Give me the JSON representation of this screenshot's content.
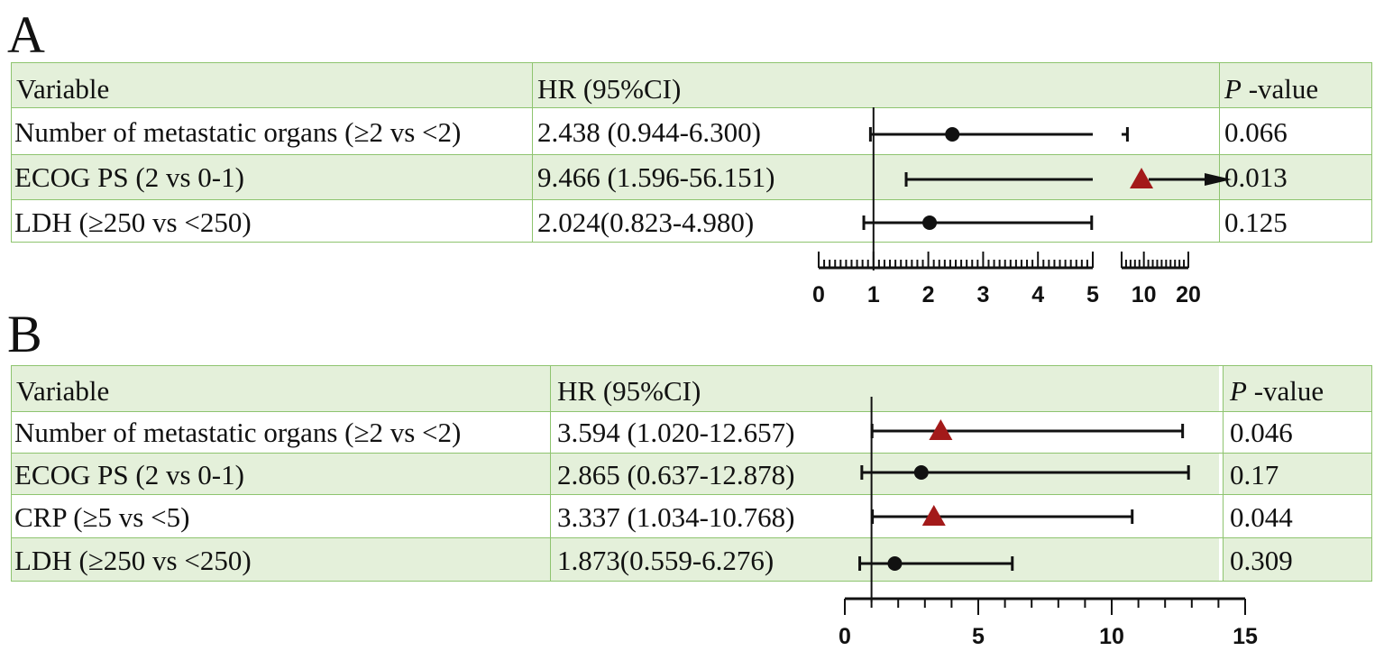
{
  "panels": [
    {
      "letter": "A",
      "headers": {
        "variable": "Variable",
        "hr": "HR (95%CI)",
        "p_italic": "P",
        "p_rest": " -value"
      },
      "rows": [
        {
          "variable": "Number of metastatic organs (≥2 vs <2)",
          "hr": "2.438 (0.944-6.300)",
          "p": "0.066"
        },
        {
          "variable": "ECOG PS (2 vs 0-1)",
          "hr": "9.466 (1.596-56.151)",
          "p": "0.013"
        },
        {
          "variable": "LDH (≥250 vs <250)",
          "hr": "2.024(0.823-4.980)",
          "p": "0.125"
        }
      ],
      "axis_ticks": [
        "0",
        "1",
        "2",
        "3",
        "4",
        "5",
        "10",
        "20"
      ]
    },
    {
      "letter": "B",
      "headers": {
        "variable": "Variable",
        "hr": "HR (95%CI)",
        "p_italic": "P",
        "p_rest": " -value"
      },
      "rows": [
        {
          "variable": "Number of metastatic organs (≥2 vs <2)",
          "hr": "3.594 (1.020-12.657)",
          "p": "0.046"
        },
        {
          "variable": "ECOG PS (2 vs 0-1)",
          "hr": "2.865 (0.637-12.878)",
          "p": "0.17"
        },
        {
          "variable": "CRP (≥5 vs <5)",
          "hr": "3.337 (1.034-10.768)",
          "p": "0.044"
        },
        {
          "variable": "LDH (≥250 vs <250)",
          "hr": "1.873(0.559-6.276)",
          "p": "0.309"
        }
      ],
      "axis_ticks": [
        "0",
        "5",
        "10",
        "15"
      ]
    }
  ],
  "chart_data": [
    {
      "type": "forest",
      "x_scale": "broken axis: linear 0-5, then 5-20",
      "reference_line": 1,
      "xlim": [
        0,
        20
      ],
      "series": [
        {
          "label": "Number of metastatic organs (≥2 vs <2)",
          "hr": 2.438,
          "lower": 0.944,
          "upper": 6.3,
          "marker": "circle",
          "color": "#111111"
        },
        {
          "label": "ECOG PS (2 vs 0-1)",
          "hr": 9.466,
          "lower": 1.596,
          "upper": 56.151,
          "marker": "triangle",
          "color": "#a31a1a",
          "upper_arrow": true
        },
        {
          "label": "LDH (≥250 vs <250)",
          "hr": 2.024,
          "lower": 0.823,
          "upper": 4.98,
          "marker": "circle",
          "color": "#111111"
        }
      ]
    },
    {
      "type": "forest",
      "x_scale": "linear",
      "reference_line": 1,
      "xlim": [
        0,
        15
      ],
      "series": [
        {
          "label": "Number of metastatic organs (≥2 vs <2)",
          "hr": 3.594,
          "lower": 1.02,
          "upper": 12.657,
          "marker": "triangle",
          "color": "#a31a1a"
        },
        {
          "label": "ECOG PS (2 vs 0-1)",
          "hr": 2.865,
          "lower": 0.637,
          "upper": 12.878,
          "marker": "circle",
          "color": "#111111"
        },
        {
          "label": "CRP (≥5 vs <5)",
          "hr": 3.337,
          "lower": 1.034,
          "upper": 10.768,
          "marker": "triangle",
          "color": "#a31a1a"
        },
        {
          "label": "LDH (≥250 vs <250)",
          "hr": 1.873,
          "lower": 0.559,
          "upper": 6.276,
          "marker": "circle",
          "color": "#111111"
        }
      ]
    }
  ],
  "colors": {
    "band": "#e4f0da",
    "grid": "#8ec46f",
    "marker_dark": "#111111",
    "marker_red": "#a31a1a"
  }
}
